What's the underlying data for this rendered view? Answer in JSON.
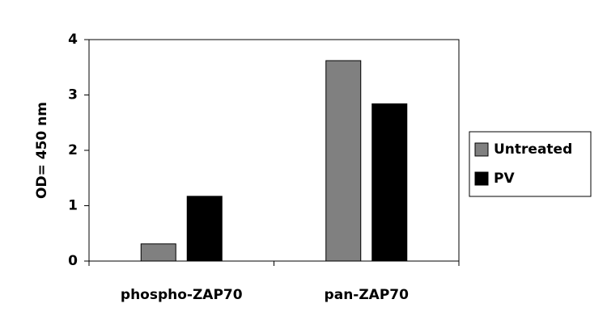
{
  "chart_data": {
    "type": "bar",
    "y_label": "OD= 450 nm",
    "categories": [
      "phospho-ZAP70",
      "pan-ZAP70"
    ],
    "series": [
      {
        "name": "Untreated",
        "color": "#808080",
        "values": [
          0.31,
          3.62
        ]
      },
      {
        "name": "PV",
        "color": "#000000",
        "values": [
          1.17,
          2.84
        ]
      }
    ],
    "ylim": [
      0,
      4
    ],
    "yticks": [
      0,
      1,
      2,
      3,
      4
    ],
    "legend": "right"
  }
}
